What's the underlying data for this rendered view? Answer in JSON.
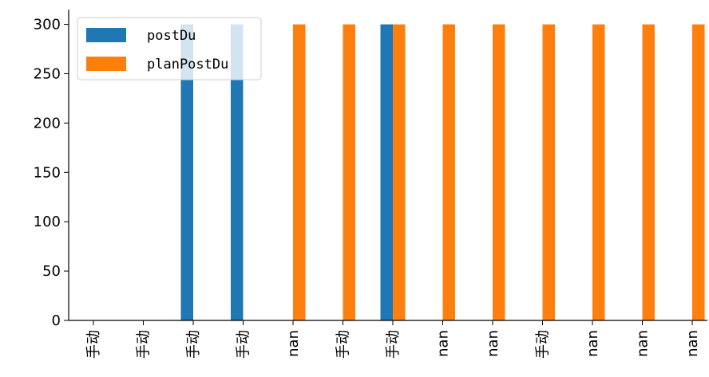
{
  "chart_data": {
    "type": "bar",
    "categories": [
      "手动",
      "手动",
      "手动",
      "手动",
      "nan",
      "手动",
      "手动",
      "nan",
      "nan",
      "手动",
      "nan",
      "nan",
      "nan"
    ],
    "series": [
      {
        "name": "postDu",
        "color": "#1f77b4",
        "values": [
          0,
          0,
          300,
          300,
          null,
          0,
          300,
          null,
          null,
          0,
          null,
          null,
          null
        ]
      },
      {
        "name": "planPostDu",
        "color": "#ff7f0e",
        "values": [
          0,
          0,
          0,
          0,
          300,
          300,
          300,
          300,
          300,
          300,
          300,
          300,
          300
        ]
      }
    ],
    "y_ticks": [
      0,
      50,
      100,
      150,
      200,
      250,
      300
    ],
    "ylim": [
      0,
      315
    ],
    "legend_position": "upper-left",
    "x_label_rotation": "vertical"
  }
}
